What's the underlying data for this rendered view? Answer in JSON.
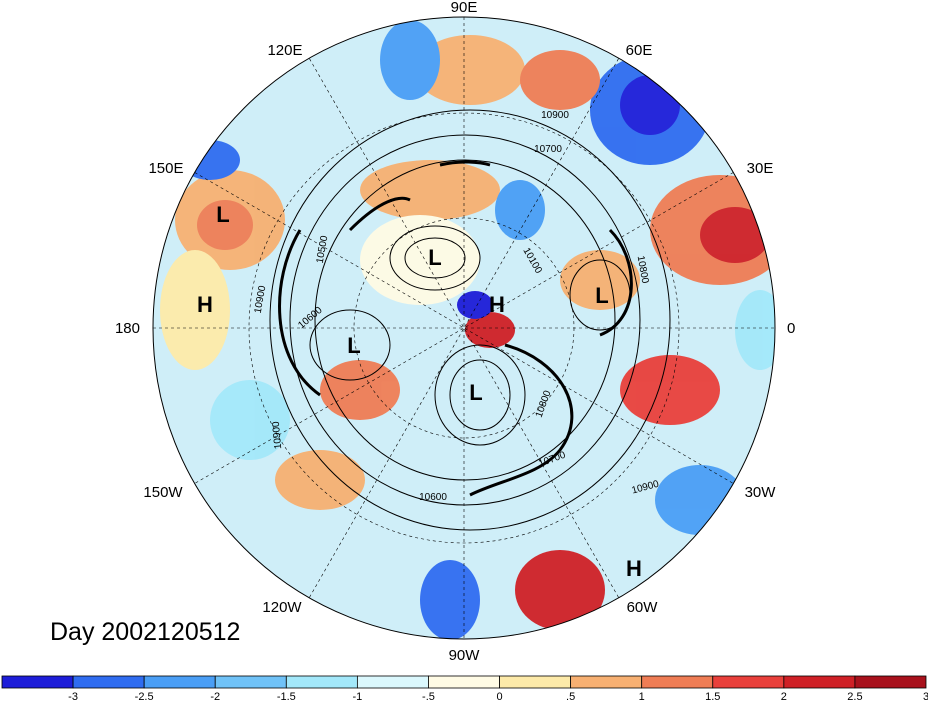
{
  "title": "Day 2002120512",
  "longitude_labels": [
    {
      "id": "lon-90e",
      "text": "90E"
    },
    {
      "id": "lon-60e",
      "text": "60E"
    },
    {
      "id": "lon-30e",
      "text": "30E"
    },
    {
      "id": "lon-0",
      "text": "0"
    },
    {
      "id": "lon-30w",
      "text": "30W"
    },
    {
      "id": "lon-60w",
      "text": "60W"
    },
    {
      "id": "lon-90w",
      "text": "90W"
    },
    {
      "id": "lon-120w",
      "text": "120W"
    },
    {
      "id": "lon-150w",
      "text": "150W"
    },
    {
      "id": "lon-180",
      "text": "180"
    },
    {
      "id": "lon-150e",
      "text": "150E"
    },
    {
      "id": "lon-120e",
      "text": "120E"
    }
  ],
  "pressure_centers": [
    {
      "id": "low-nw",
      "text": "L"
    },
    {
      "id": "high-west",
      "text": "H"
    },
    {
      "id": "low-central-north",
      "text": "L"
    },
    {
      "id": "low-west",
      "text": "L"
    },
    {
      "id": "high-pole",
      "text": "H"
    },
    {
      "id": "low-europe",
      "text": "L"
    },
    {
      "id": "low-greenland",
      "text": "L"
    },
    {
      "id": "high-atlantic",
      "text": "H"
    }
  ],
  "contour_labels": [
    "10900",
    "10700",
    "10500",
    "10900",
    "10600",
    "10900",
    "10100",
    "10800",
    "10800",
    "10700",
    "10600",
    "10900"
  ],
  "colorbar": {
    "colors": [
      "#1d1dd8",
      "#2f6cf0",
      "#4a9ef5",
      "#70c2f7",
      "#a3e8fa",
      "#dbf8fd",
      "#fffbe5",
      "#fdeaa9",
      "#f7b072",
      "#ef7d55",
      "#e9403b",
      "#cf2026",
      "#a8111c"
    ],
    "tick_labels": [
      "-3",
      "-2.5",
      "-2",
      "-1.5",
      "-1",
      "-.5",
      "0",
      ".5",
      "1",
      "1.5",
      "2",
      "2.5",
      "3"
    ]
  }
}
